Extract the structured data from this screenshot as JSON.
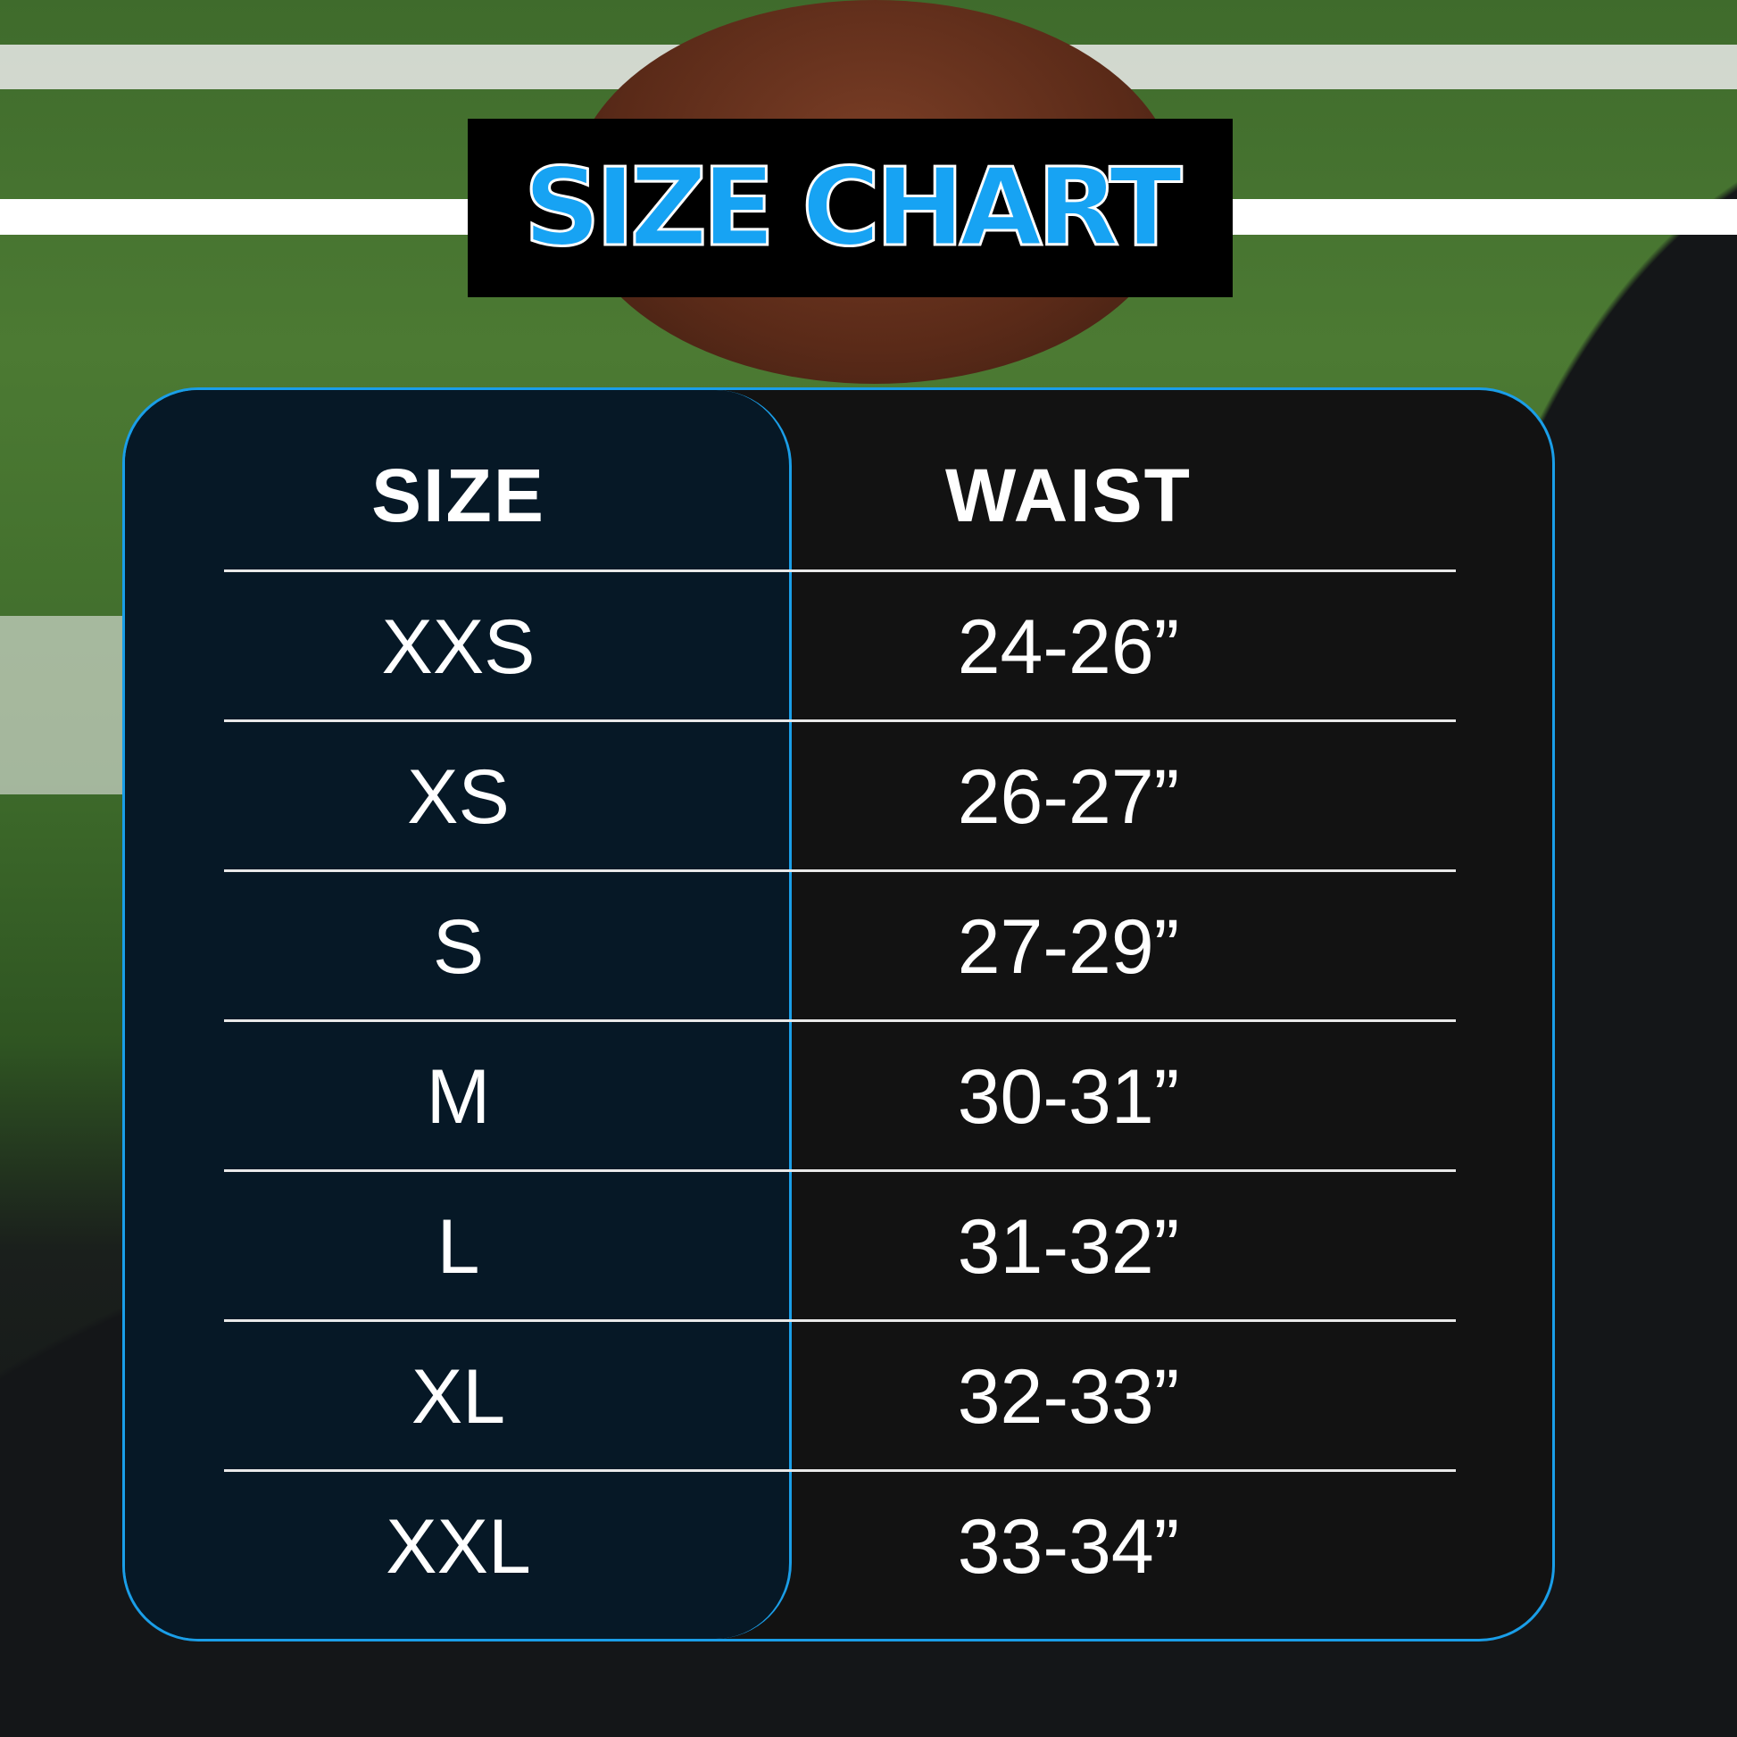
{
  "title": "SIZE CHART",
  "table": {
    "headers": [
      "SIZE",
      "WAIST"
    ],
    "rows": [
      {
        "size": "XXS",
        "waist": "24-26”"
      },
      {
        "size": "XS",
        "waist": "26-27”"
      },
      {
        "size": "S",
        "waist": "27-29”"
      },
      {
        "size": "M",
        "waist": "30-31”"
      },
      {
        "size": "L",
        "waist": "31-32”"
      },
      {
        "size": "XL",
        "waist": "32-33”"
      },
      {
        "size": "XXL",
        "waist": "33-34”"
      }
    ]
  },
  "colors": {
    "accent": "#17a3f3",
    "size_column": "#061826",
    "table_bg": "#121212"
  }
}
